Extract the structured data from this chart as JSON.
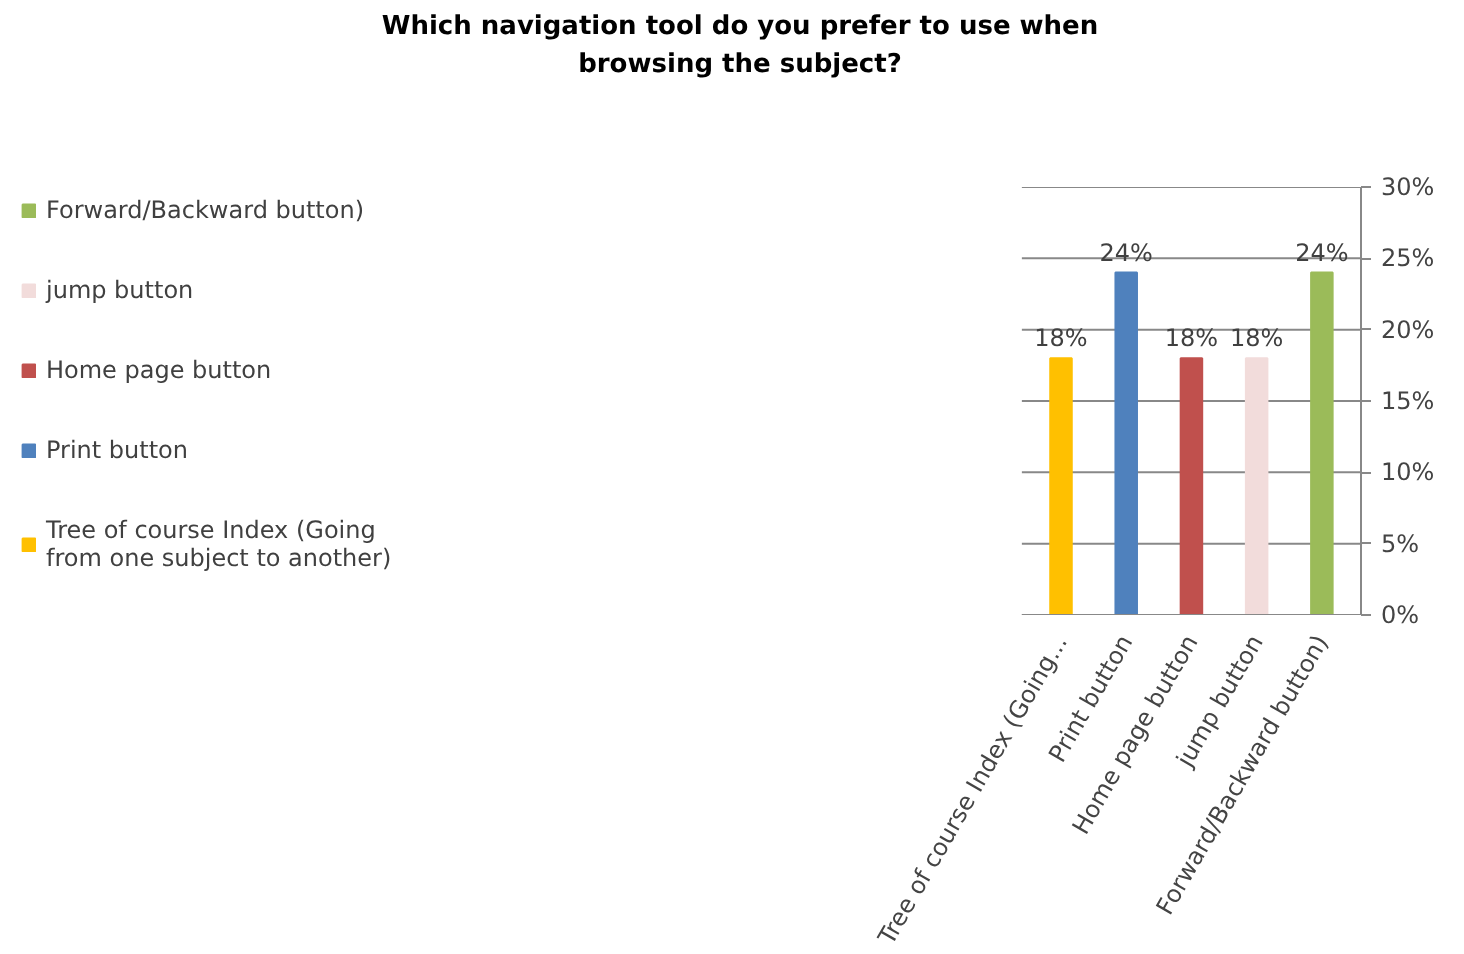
{
  "chart_data": {
    "type": "bar",
    "title": "Which navigation tool do you prefer to use when browsing the subject?",
    "categories": [
      "Tree of course Index (Going...",
      "Print button",
      "Home page button",
      "jump button",
      "Forward/Backward button)"
    ],
    "series": [
      {
        "name": "Tree of course Index (Going from one subject to another)",
        "color": "#ffc000",
        "values": [
          18,
          null,
          null,
          null,
          null
        ],
        "value_labels": [
          "18%",
          null,
          null,
          null,
          null
        ]
      },
      {
        "name": "Print button",
        "color": "#4f81bd",
        "values": [
          null,
          24,
          null,
          null,
          null
        ],
        "value_labels": [
          null,
          "24%",
          null,
          null,
          null
        ]
      },
      {
        "name": "Home page button",
        "color": "#c0504d",
        "values": [
          null,
          null,
          18,
          null,
          null
        ],
        "value_labels": [
          null,
          null,
          "18%",
          null,
          null
        ]
      },
      {
        "name": "jump button",
        "color": "#f2dcdb",
        "values": [
          null,
          null,
          null,
          18,
          null
        ],
        "value_labels": [
          null,
          null,
          null,
          "18%",
          null
        ]
      },
      {
        "name": "Forward/Backward button)",
        "color": "#9bbb59",
        "values": [
          null,
          null,
          null,
          null,
          24
        ],
        "value_labels": [
          null,
          null,
          null,
          null,
          "24%"
        ]
      }
    ],
    "ylim": [
      0,
      30
    ],
    "yticks": [
      {
        "value": 0,
        "label": "0%"
      },
      {
        "value": 5,
        "label": "5%"
      },
      {
        "value": 10,
        "label": "10%"
      },
      {
        "value": 15,
        "label": "15%"
      },
      {
        "value": 20,
        "label": "20%"
      },
      {
        "value": 25,
        "label": "25%"
      },
      {
        "value": 30,
        "label": "30%"
      }
    ],
    "grid": "y",
    "legend": "left"
  }
}
